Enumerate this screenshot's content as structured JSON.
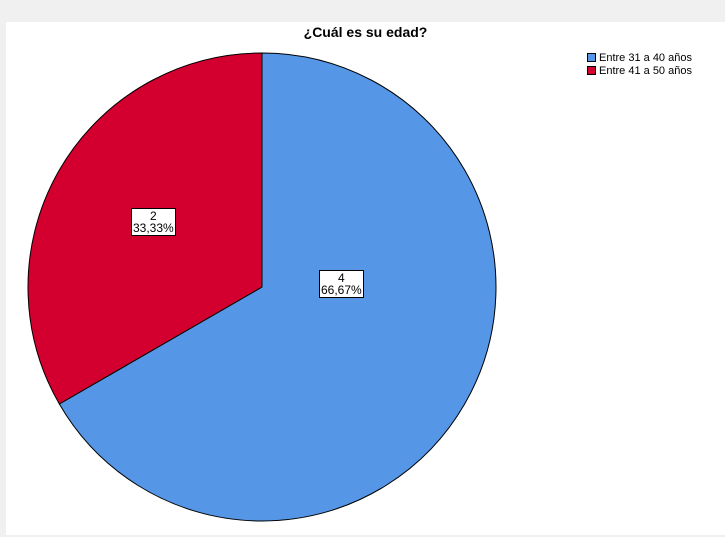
{
  "chart_data": {
    "type": "pie",
    "title": "¿Cuál es su edad?",
    "slices": [
      {
        "label": "Entre 31 a 40 años",
        "count": 4,
        "percent": "66,67%",
        "count_label": "4",
        "color": "#5596e6"
      },
      {
        "label": "Entre 41 a 50 años",
        "count": 2,
        "percent": "33,33%",
        "count_label": "2",
        "color": "#d3002f"
      }
    ],
    "legend_position": "top-right"
  }
}
